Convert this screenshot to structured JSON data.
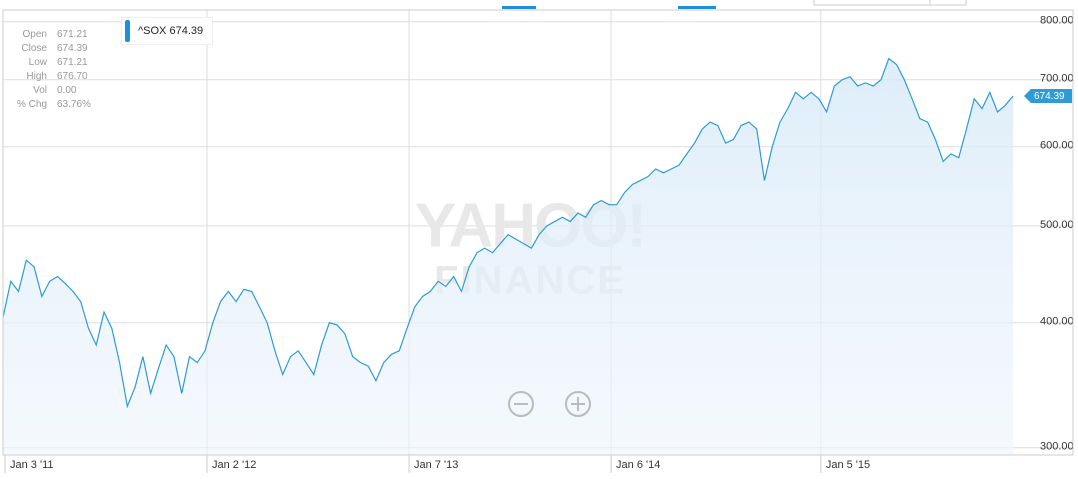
{
  "chart_data": {
    "type": "line",
    "log_scale": true,
    "grid": true,
    "fill_area": true,
    "categories": [
      "Jan 3 '11",
      null,
      null,
      null,
      null,
      null,
      null,
      null,
      null,
      null,
      null,
      null,
      null,
      null,
      null,
      null,
      null,
      null,
      null,
      null,
      null,
      null,
      null,
      null,
      null,
      null,
      "Jan 2 '12",
      null,
      null,
      null,
      null,
      null,
      null,
      null,
      null,
      null,
      null,
      null,
      null,
      null,
      null,
      null,
      null,
      null,
      null,
      null,
      null,
      null,
      null,
      null,
      null,
      null,
      "Jan 7 '13",
      null,
      null,
      null,
      null,
      null,
      null,
      null,
      null,
      null,
      null,
      null,
      null,
      null,
      null,
      null,
      null,
      null,
      null,
      null,
      null,
      null,
      null,
      null,
      null,
      null,
      "Jan 6 '14",
      null,
      null,
      null,
      null,
      null,
      null,
      null,
      null,
      null,
      null,
      null,
      null,
      null,
      null,
      null,
      null,
      null,
      null,
      null,
      null,
      null,
      null,
      null,
      null,
      null,
      null,
      "Jan 5 '15",
      null,
      null,
      null,
      null,
      null,
      null,
      null,
      null,
      null,
      null,
      null,
      null,
      null,
      null,
      null,
      null,
      null,
      null,
      null,
      null,
      null,
      null,
      null,
      null,
      null
    ],
    "series": [
      {
        "name": "^SOX",
        "color": "#2e9bd6",
        "values": [
          405,
          440,
          430,
          462,
          455,
          425,
          440,
          445,
          438,
          430,
          420,
          395,
          380,
          410,
          395,
          365,
          330,
          345,
          370,
          340,
          360,
          380,
          370,
          340,
          370,
          365,
          375,
          400,
          420,
          430,
          420,
          432,
          430,
          415,
          400,
          375,
          355,
          370,
          375,
          365,
          355,
          380,
          400,
          398,
          390,
          370,
          365,
          362,
          350,
          365,
          372,
          375,
          395,
          415,
          425,
          430,
          440,
          435,
          445,
          430,
          455,
          470,
          475,
          470,
          480,
          490,
          485,
          480,
          475,
          490,
          500,
          505,
          510,
          505,
          515,
          510,
          525,
          530,
          525,
          525,
          540,
          550,
          555,
          560,
          570,
          565,
          570,
          575,
          590,
          605,
          625,
          635,
          630,
          605,
          610,
          630,
          635,
          625,
          555,
          600,
          635,
          655,
          680,
          670,
          680,
          670,
          650,
          690,
          700,
          705,
          690,
          695,
          690,
          700,
          735,
          725,
          700,
          670,
          640,
          635,
          610,
          580,
          590,
          585,
          625,
          670,
          655,
          680,
          650,
          660,
          674.39
        ]
      }
    ],
    "ylim": [
      295,
      822
    ],
    "yticks": [
      {
        "value": 300,
        "label": "300.00"
      },
      {
        "value": 400,
        "label": "400.00"
      },
      {
        "value": 500,
        "label": "500.00"
      },
      {
        "value": 600,
        "label": "600.00"
      },
      {
        "value": 700,
        "label": "700.00"
      },
      {
        "value": 800,
        "label": "800.00"
      }
    ],
    "info_panel": [
      {
        "label": "Open",
        "value": "671.21"
      },
      {
        "label": "Close",
        "value": "674.39"
      },
      {
        "label": "Low",
        "value": "671.21"
      },
      {
        "label": "High",
        "value": "676.70"
      },
      {
        "label": "Vol",
        "value": "0.00"
      },
      {
        "label": "% Chg",
        "value": "63.76%"
      }
    ],
    "watermark": [
      "YAHOO!",
      "FINANCE"
    ]
  }
}
